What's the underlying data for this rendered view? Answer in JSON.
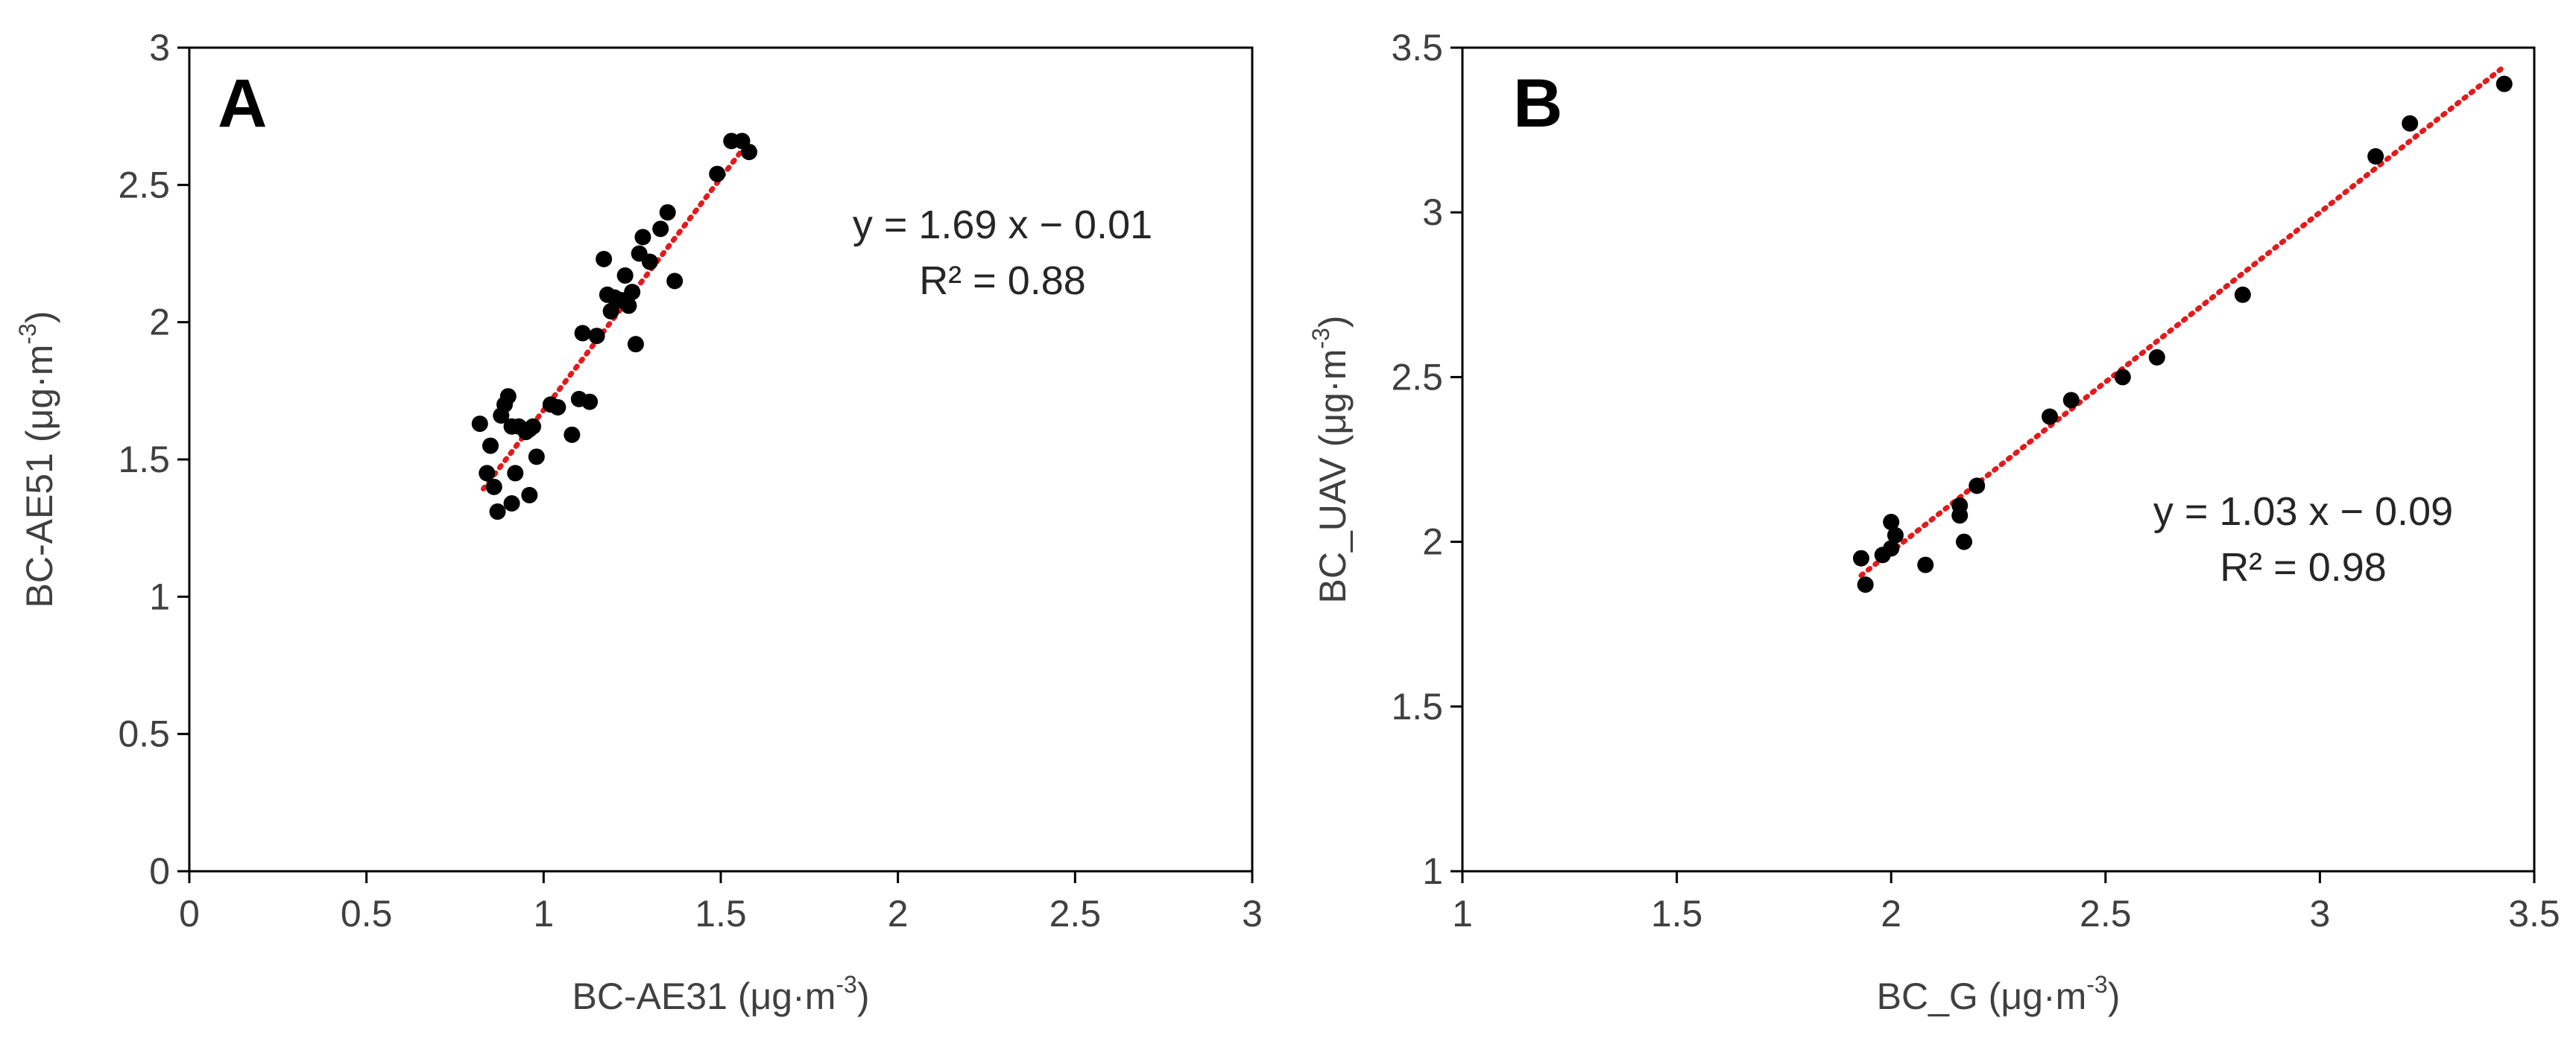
{
  "chart_data": [
    {
      "type": "scatter",
      "panel": "A",
      "xlabel": "BC-AE31 (μg·m",
      "ylabel": "BC-AE51 (μg·m",
      "unit_exponent": "-3",
      "unit_close": ")",
      "xlim": [
        0,
        3
      ],
      "ylim": [
        0,
        3
      ],
      "xticks": [
        "0",
        "0.5",
        "1",
        "1.5",
        "2",
        "2.5",
        "3"
      ],
      "yticks": [
        "0",
        "0.5",
        "1",
        "1.5",
        "2",
        "2.5",
        "3"
      ],
      "equation": "y = 1.69 x − 0.01",
      "r2": "R² = 0.88",
      "trendline": {
        "slope": 1.69,
        "intercept": -0.01,
        "x_range": [
          0.83,
          1.58
        ],
        "color": "#e31a1c",
        "style": "dotted"
      },
      "marker_color": "#000000",
      "points": [
        [
          0.82,
          1.63
        ],
        [
          0.84,
          1.45
        ],
        [
          0.85,
          1.55
        ],
        [
          0.86,
          1.4
        ],
        [
          0.87,
          1.31
        ],
        [
          0.88,
          1.66
        ],
        [
          0.89,
          1.7
        ],
        [
          0.9,
          1.73
        ],
        [
          0.91,
          1.62
        ],
        [
          0.91,
          1.34
        ],
        [
          0.92,
          1.45
        ],
        [
          0.93,
          1.62
        ],
        [
          0.95,
          1.6
        ],
        [
          0.96,
          1.61
        ],
        [
          0.96,
          1.37
        ],
        [
          0.97,
          1.62
        ],
        [
          0.98,
          1.51
        ],
        [
          1.02,
          1.7
        ],
        [
          1.04,
          1.69
        ],
        [
          1.08,
          1.59
        ],
        [
          1.1,
          1.72
        ],
        [
          1.11,
          1.96
        ],
        [
          1.13,
          1.71
        ],
        [
          1.15,
          1.95
        ],
        [
          1.17,
          2.23
        ],
        [
          1.18,
          2.1
        ],
        [
          1.19,
          2.04
        ],
        [
          1.2,
          2.09
        ],
        [
          1.22,
          2.08
        ],
        [
          1.23,
          2.17
        ],
        [
          1.24,
          2.06
        ],
        [
          1.25,
          2.11
        ],
        [
          1.26,
          1.92
        ],
        [
          1.27,
          2.25
        ],
        [
          1.28,
          2.31
        ],
        [
          1.3,
          2.22
        ],
        [
          1.33,
          2.34
        ],
        [
          1.35,
          2.4
        ],
        [
          1.37,
          2.15
        ],
        [
          1.49,
          2.54
        ],
        [
          1.53,
          2.66
        ],
        [
          1.56,
          2.66
        ],
        [
          1.58,
          2.62
        ]
      ]
    },
    {
      "type": "scatter",
      "panel": "B",
      "xlabel": "BC_G (μg·m",
      "ylabel": "BC_UAV (μg·m",
      "unit_exponent": "-3",
      "unit_close": ")",
      "xlim": [
        1,
        3.5
      ],
      "ylim": [
        1,
        3.5
      ],
      "xticks": [
        "1",
        "1.5",
        "2",
        "2.5",
        "3",
        "3.5"
      ],
      "yticks": [
        "1",
        "1.5",
        "2",
        "2.5",
        "3",
        "3.5"
      ],
      "equation": "y = 1.03 x − 0.09",
      "r2": "R² = 0.98",
      "trendline": {
        "slope": 1.03,
        "intercept": -0.09,
        "x_range": [
          1.93,
          3.43
        ],
        "color": "#e31a1c",
        "style": "dotted"
      },
      "marker_color": "#000000",
      "points": [
        [
          1.93,
          1.95
        ],
        [
          1.94,
          1.87
        ],
        [
          1.98,
          1.96
        ],
        [
          2.0,
          2.06
        ],
        [
          2.01,
          2.02
        ],
        [
          2.0,
          1.98
        ],
        [
          2.08,
          1.93
        ],
        [
          2.16,
          2.11
        ],
        [
          2.16,
          2.08
        ],
        [
          2.17,
          2.0
        ],
        [
          2.2,
          2.17
        ],
        [
          2.37,
          2.38
        ],
        [
          2.42,
          2.43
        ],
        [
          2.54,
          2.5
        ],
        [
          2.62,
          2.56
        ],
        [
          2.82,
          2.75
        ],
        [
          3.13,
          3.17
        ],
        [
          3.21,
          3.27
        ],
        [
          3.43,
          3.39
        ]
      ]
    }
  ]
}
